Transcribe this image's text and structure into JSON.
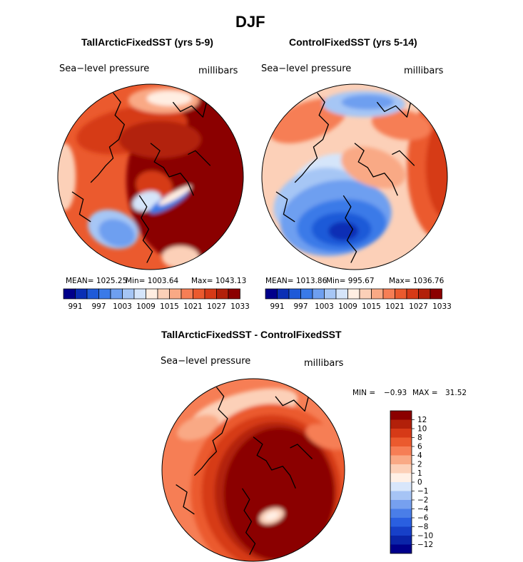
{
  "page": {
    "title": "DJF"
  },
  "palettes": {
    "absolute": [
      "#00008b",
      "#0a2fb5",
      "#1e5ad8",
      "#3a7ae8",
      "#6e9ff0",
      "#a6c6f5",
      "#d5e5fa",
      "#ffeee2",
      "#fcd0b8",
      "#f9a985",
      "#f67e55",
      "#eb5a2e",
      "#d63a17",
      "#b2200a",
      "#8b0000"
    ],
    "difference": [
      "#00008b",
      "#0a24a8",
      "#1740c8",
      "#2a5fe0",
      "#4a7ee8",
      "#76a0ef",
      "#a6c4f5",
      "#d8e6fb",
      "#fff0e6",
      "#fcd0b8",
      "#f9a985",
      "#f67e55",
      "#eb5a2e",
      "#d63a17",
      "#b2200a",
      "#8b0000"
    ]
  },
  "colorbar_small": {
    "labels": [
      "991",
      "997",
      "1003",
      "1009",
      "1015",
      "1021",
      "1027",
      "1033"
    ]
  },
  "colorbar_diff": {
    "labels": [
      "12",
      "10",
      "8",
      "6",
      "4",
      "2",
      "1",
      "0",
      "−1",
      "−2",
      "−4",
      "−6",
      "−8",
      "−10",
      "−12"
    ]
  },
  "chart_data": [
    {
      "type": "heatmap",
      "id": "tall",
      "title": "TallArcticFixedSST (yrs 5-9)",
      "field_label": "Sea−level pressure",
      "units": "millibars",
      "stats": {
        "mean": "MEAN= 1025.25",
        "min": "Min= 1003.64",
        "max": "Max= 1043.13"
      },
      "colorbar_ticks": [
        991,
        997,
        1003,
        1009,
        1015,
        1021,
        1027,
        1033
      ],
      "projection": "polar stereographic, North Pole",
      "background_level": 11,
      "regions": [
        {
          "level": 14,
          "cx": 0.72,
          "cy": 0.52,
          "rx": 0.35,
          "ry": 0.45,
          "rot": 0
        },
        {
          "level": 12,
          "cx": 0.4,
          "cy": 0.25,
          "rx": 0.3,
          "ry": 0.12,
          "rot": -10
        },
        {
          "level": 13,
          "cx": 0.55,
          "cy": 0.3,
          "rx": 0.22,
          "ry": 0.1,
          "rot": 0
        },
        {
          "level": 12,
          "cx": 0.52,
          "cy": 0.55,
          "rx": 0.1,
          "ry": 0.08,
          "rot": 20
        },
        {
          "level": 9,
          "cx": 0.57,
          "cy": 0.09,
          "rx": 0.19,
          "ry": 0.07,
          "rot": 0
        },
        {
          "level": 7,
          "cx": 0.6,
          "cy": 0.08,
          "rx": 0.12,
          "ry": 0.04,
          "rot": 0
        },
        {
          "level": 5,
          "cx": 0.3,
          "cy": 0.78,
          "rx": 0.14,
          "ry": 0.1,
          "rot": 20
        },
        {
          "level": 4,
          "cx": 0.32,
          "cy": 0.8,
          "rx": 0.1,
          "ry": 0.07,
          "rot": 20
        },
        {
          "level": 6,
          "cx": 0.48,
          "cy": 0.63,
          "rx": 0.08,
          "ry": 0.05,
          "rot": -20
        },
        {
          "level": 3,
          "cx": 0.6,
          "cy": 0.63,
          "rx": 0.12,
          "ry": 0.032,
          "rot": -30
        },
        {
          "level": 7,
          "cx": 0.63,
          "cy": 0.6,
          "rx": 0.1,
          "ry": 0.02,
          "rot": -30
        },
        {
          "level": 8,
          "cx": 0.04,
          "cy": 0.5,
          "rx": 0.06,
          "ry": 0.18,
          "rot": 0
        },
        {
          "level": 8,
          "cx": 0.66,
          "cy": 0.93,
          "rx": 0.1,
          "ry": 0.06,
          "rot": 0
        }
      ]
    },
    {
      "type": "heatmap",
      "id": "control",
      "title": "ControlFixedSST (yrs 5-14)",
      "field_label": "Sea−level pressure",
      "units": "millibars",
      "stats": {
        "mean": "MEAN= 1013.86",
        "min": "Min= 995.67",
        "max": "Max= 1036.76"
      },
      "colorbar_ticks": [
        991,
        997,
        1003,
        1009,
        1015,
        1021,
        1027,
        1033
      ],
      "projection": "polar stereographic, North Pole",
      "background_level": 8,
      "regions": [
        {
          "level": 11,
          "cx": 0.98,
          "cy": 0.45,
          "rx": 0.2,
          "ry": 0.4,
          "rot": 0
        },
        {
          "level": 12,
          "cx": 1.0,
          "cy": 0.45,
          "rx": 0.12,
          "ry": 0.28,
          "rot": 0
        },
        {
          "level": 10,
          "cx": 0.25,
          "cy": 0.2,
          "rx": 0.22,
          "ry": 0.1,
          "rot": -20
        },
        {
          "level": 10,
          "cx": 0.75,
          "cy": 0.22,
          "rx": 0.16,
          "ry": 0.08,
          "rot": 10
        },
        {
          "level": 5,
          "cx": 0.55,
          "cy": 0.11,
          "rx": 0.22,
          "ry": 0.07,
          "rot": 0
        },
        {
          "level": 4,
          "cx": 0.57,
          "cy": 0.1,
          "rx": 0.14,
          "ry": 0.04,
          "rot": 0
        },
        {
          "level": 6,
          "cx": 0.33,
          "cy": 0.52,
          "rx": 0.2,
          "ry": 0.12,
          "rot": -30
        },
        {
          "level": 5,
          "cx": 0.3,
          "cy": 0.63,
          "rx": 0.24,
          "ry": 0.17,
          "rot": -20
        },
        {
          "level": 4,
          "cx": 0.4,
          "cy": 0.72,
          "rx": 0.3,
          "ry": 0.2,
          "rot": -10
        },
        {
          "level": 3,
          "cx": 0.43,
          "cy": 0.76,
          "rx": 0.24,
          "ry": 0.14,
          "rot": -5
        },
        {
          "level": 2,
          "cx": 0.43,
          "cy": 0.78,
          "rx": 0.16,
          "ry": 0.09,
          "rot": 0
        },
        {
          "level": 1,
          "cx": 0.44,
          "cy": 0.79,
          "rx": 0.08,
          "ry": 0.05,
          "rot": 0
        },
        {
          "level": 9,
          "cx": 0.6,
          "cy": 0.45,
          "rx": 0.18,
          "ry": 0.1,
          "rot": 20
        }
      ]
    },
    {
      "type": "heatmap",
      "id": "difference",
      "title": "TallArcticFixedSST - ControlFixedSST",
      "field_label": "Sea−level pressure",
      "units": "millibars",
      "stats": {
        "min_label": "MIN =",
        "min": "−0.93",
        "max_label": "MAX =",
        "max": "31.52"
      },
      "colorbar_ticks": [
        12,
        10,
        8,
        6,
        4,
        2,
        1,
        0,
        -1,
        -2,
        -4,
        -6,
        -8,
        -10,
        -12
      ],
      "projection": "polar stereographic, North Pole",
      "background_level": 11,
      "regions": [
        {
          "level": 9,
          "cx": 0.45,
          "cy": 0.18,
          "rx": 0.3,
          "ry": 0.1,
          "rot": -15
        },
        {
          "level": 10,
          "cx": 0.2,
          "cy": 0.27,
          "rx": 0.12,
          "ry": 0.06,
          "rot": -20
        },
        {
          "level": 12,
          "cx": 0.6,
          "cy": 0.62,
          "rx": 0.44,
          "ry": 0.48,
          "rot": 0
        },
        {
          "level": 13,
          "cx": 0.6,
          "cy": 0.62,
          "rx": 0.38,
          "ry": 0.42,
          "rot": 0
        },
        {
          "level": 14,
          "cx": 0.62,
          "cy": 0.62,
          "rx": 0.33,
          "ry": 0.38,
          "rot": 0
        },
        {
          "level": 15,
          "cx": 0.64,
          "cy": 0.63,
          "rx": 0.3,
          "ry": 0.36,
          "rot": 0
        },
        {
          "level": 9,
          "cx": 0.6,
          "cy": 0.75,
          "rx": 0.07,
          "ry": 0.04,
          "rot": -20
        },
        {
          "level": 8,
          "cx": 0.6,
          "cy": 0.75,
          "rx": 0.04,
          "ry": 0.02,
          "rot": -20
        },
        {
          "level": 11,
          "cx": 0.9,
          "cy": 0.32,
          "rx": 0.12,
          "ry": 0.06,
          "rot": 20
        }
      ]
    }
  ]
}
